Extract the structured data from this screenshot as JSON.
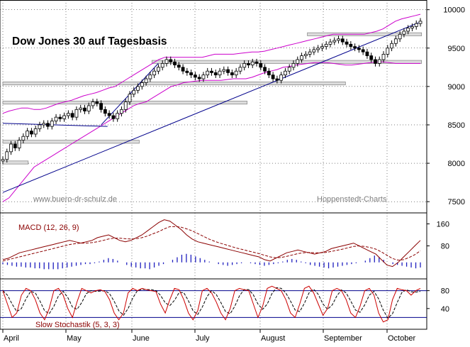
{
  "chart_data": {
    "type": "line",
    "title": "Dow Jones 30 auf Tagesbasis",
    "watermark_left": "www.buero-dr-schulz.de",
    "watermark_right": "Hoppenstedt-Charts",
    "months": [
      "April",
      "May",
      "June",
      "July",
      "August",
      "September",
      "October"
    ],
    "price_panel": {
      "y_ticks": [
        "10000",
        "9500",
        "9000",
        "8500",
        "8000",
        "7500"
      ],
      "ylim": [
        7400,
        10080
      ],
      "close": [
        8050,
        8150,
        8250,
        8200,
        8300,
        8350,
        8420,
        8380,
        8450,
        8500,
        8520,
        8480,
        8550,
        8600,
        8580,
        8620,
        8650,
        8600,
        8700,
        8720,
        8680,
        8750,
        8800,
        8780,
        8700,
        8650,
        8620,
        8580,
        8650,
        8700,
        8800,
        8900,
        8950,
        9000,
        9050,
        9100,
        9150,
        9200,
        9250,
        9300,
        9350,
        9320,
        9280,
        9250,
        9200,
        9180,
        9150,
        9120,
        9100,
        9150,
        9200,
        9180,
        9150,
        9200,
        9220,
        9180,
        9150,
        9200,
        9250,
        9300,
        9280,
        9320,
        9300,
        9250,
        9200,
        9150,
        9100,
        9080,
        9150,
        9200,
        9250,
        9300,
        9350,
        9400,
        9420,
        9450,
        9480,
        9500,
        9520,
        9550,
        9580,
        9600,
        9620,
        9580,
        9550,
        9520,
        9500,
        9480,
        9450,
        9400,
        9350,
        9300,
        9350,
        9420,
        9500,
        9560,
        9620,
        9680,
        9720,
        9760,
        9780,
        9820,
        9850
      ],
      "upper_band": [
        8650,
        8680,
        8700,
        8720,
        8720,
        8700,
        8700,
        8720,
        8750,
        8780,
        8800,
        8820,
        8850,
        8880,
        8900,
        8920,
        8950,
        8980,
        9000,
        9050,
        9100,
        9150,
        9200,
        9250,
        9300,
        9350,
        9380,
        9380,
        9380,
        9380,
        9380,
        9380,
        9380,
        9400,
        9420,
        9420,
        9420,
        9420,
        9430,
        9440,
        9450,
        9450,
        9460,
        9480,
        9500,
        9520,
        9540,
        9560,
        9580,
        9600,
        9620,
        9640,
        9660,
        9680,
        9680,
        9680,
        9680,
        9680,
        9680,
        9700,
        9720,
        9750,
        9800,
        9850,
        9880,
        9900,
        9920,
        9940
      ],
      "lower_band": [
        7500,
        7550,
        7650,
        7750,
        7850,
        7950,
        8000,
        8050,
        8100,
        8150,
        8200,
        8250,
        8300,
        8350,
        8400,
        8450,
        8500,
        8550,
        8600,
        8650,
        8700,
        8750,
        8780,
        8800,
        8850,
        8900,
        8950,
        9000,
        9020,
        9050,
        9060,
        9070,
        9080,
        9080,
        9080,
        9080,
        9090,
        9100,
        9100,
        9100,
        9120,
        9150,
        9180,
        9200,
        9220,
        9250,
        9260,
        9280,
        9290,
        9300,
        9310,
        9310,
        9310,
        9300,
        9290,
        9280,
        9280,
        9290,
        9300,
        9310,
        9320,
        9320,
        9310,
        9300,
        9300,
        9300,
        9300,
        9300
      ],
      "support_lines": [
        {
          "from": {
            "month_pos": 0.0,
            "value": 7620
          },
          "to": {
            "month_pos": 6.55,
            "value": 9830
          }
        },
        {
          "from": {
            "month_pos": 0.0,
            "value": 8520
          },
          "to": {
            "month_pos": 1.65,
            "value": 8480
          }
        },
        {
          "from": {
            "month_pos": 1.55,
            "value": 8500
          },
          "to": {
            "month_pos": 2.45,
            "value": 9300
          }
        }
      ],
      "resistance_boxes": [
        {
          "x0_month": 0.0,
          "x1_month": 0.4,
          "value_top": 8030,
          "value_bottom": 7990
        },
        {
          "x0_month": 0.0,
          "x1_month": 2.15,
          "value_top": 8300,
          "value_bottom": 8260
        },
        {
          "x0_month": 0.0,
          "x1_month": 3.85,
          "value_top": 8810,
          "value_bottom": 8770
        },
        {
          "x0_month": 0.0,
          "x1_month": 5.4,
          "value_top": 9060,
          "value_bottom": 9020
        },
        {
          "x0_month": 2.35,
          "x1_month": 6.6,
          "value_top": 9340,
          "value_bottom": 9300
        },
        {
          "x0_month": 4.8,
          "x1_month": 6.6,
          "value_top": 9700,
          "value_bottom": 9660
        }
      ]
    },
    "macd_panel": {
      "label": "MACD (12, 26, 9)",
      "y_ticks": [
        "160",
        "80"
      ],
      "ylim": [
        -40,
        200
      ],
      "macd": [
        30,
        35,
        45,
        55,
        60,
        65,
        70,
        75,
        80,
        85,
        90,
        95,
        100,
        95,
        90,
        95,
        100,
        110,
        115,
        120,
        110,
        100,
        95,
        100,
        110,
        120,
        135,
        150,
        165,
        175,
        170,
        155,
        140,
        120,
        105,
        95,
        90,
        85,
        80,
        75,
        70,
        65,
        60,
        55,
        50,
        45,
        40,
        30,
        25,
        35,
        45,
        55,
        60,
        65,
        60,
        55,
        50,
        55,
        60,
        70,
        75,
        80,
        85,
        90,
        80,
        70,
        60,
        50,
        30,
        10,
        5,
        20,
        40,
        60,
        80,
        100
      ],
      "signal": [
        25,
        30,
        35,
        40,
        45,
        50,
        55,
        60,
        65,
        70,
        75,
        80,
        85,
        88,
        90,
        90,
        92,
        95,
        100,
        105,
        108,
        108,
        106,
        105,
        106,
        110,
        116,
        124,
        132,
        142,
        150,
        150,
        148,
        142,
        135,
        125,
        115,
        105,
        97,
        90,
        84,
        78,
        72,
        67,
        62,
        57,
        52,
        46,
        40,
        37,
        38,
        42,
        47,
        52,
        55,
        56,
        55,
        55,
        56,
        60,
        64,
        68,
        73,
        78,
        80,
        78,
        74,
        68,
        58,
        46,
        34,
        28,
        30,
        38,
        48,
        62
      ],
      "histogram": [
        2,
        3,
        4,
        5,
        5,
        6,
        6,
        7,
        7,
        8,
        8,
        8,
        8,
        7,
        6,
        5,
        4,
        3,
        2,
        2,
        1,
        -1,
        -3,
        -5,
        -4,
        -2,
        0,
        3,
        5,
        6,
        7,
        7,
        8,
        6,
        4,
        2,
        0,
        -3,
        -6,
        -9,
        -10,
        -9,
        -7,
        -5,
        -3,
        -1,
        0,
        2,
        3,
        4,
        3,
        2,
        1,
        0,
        1,
        2,
        3,
        4,
        3,
        2,
        1,
        -1,
        -3,
        -4,
        -3,
        -1,
        1,
        3,
        4,
        5,
        6,
        7,
        6,
        5,
        4,
        3,
        2,
        1,
        0,
        -2,
        -5,
        -8,
        -6,
        -3,
        0,
        2,
        3,
        4,
        5,
        6,
        7,
        6
      ]
    },
    "stoch_panel": {
      "label": "Slow Stochastik (5, 3, 3)",
      "y_ticks": [
        "80",
        "40"
      ],
      "ylim": [
        0,
        100
      ],
      "reference_levels": [
        80,
        20
      ],
      "k": [
        80,
        50,
        20,
        30,
        70,
        85,
        80,
        60,
        30,
        15,
        40,
        80,
        85,
        70,
        40,
        20,
        55,
        85,
        80,
        75,
        80,
        82,
        78,
        60,
        30,
        15,
        30,
        75,
        85,
        80,
        85,
        82,
        80,
        78,
        50,
        30,
        60,
        85,
        82,
        60,
        30,
        15,
        35,
        80,
        85,
        75,
        55,
        30,
        15,
        40,
        80,
        85,
        82,
        80,
        50,
        20,
        45,
        85,
        90,
        85,
        80,
        60,
        30,
        20,
        50,
        85,
        90,
        75,
        50,
        25,
        40,
        80,
        85,
        80,
        60,
        30,
        20,
        45,
        80,
        85,
        70,
        30,
        10,
        15,
        60,
        85,
        82,
        80,
        70,
        80,
        85
      ]
    }
  }
}
